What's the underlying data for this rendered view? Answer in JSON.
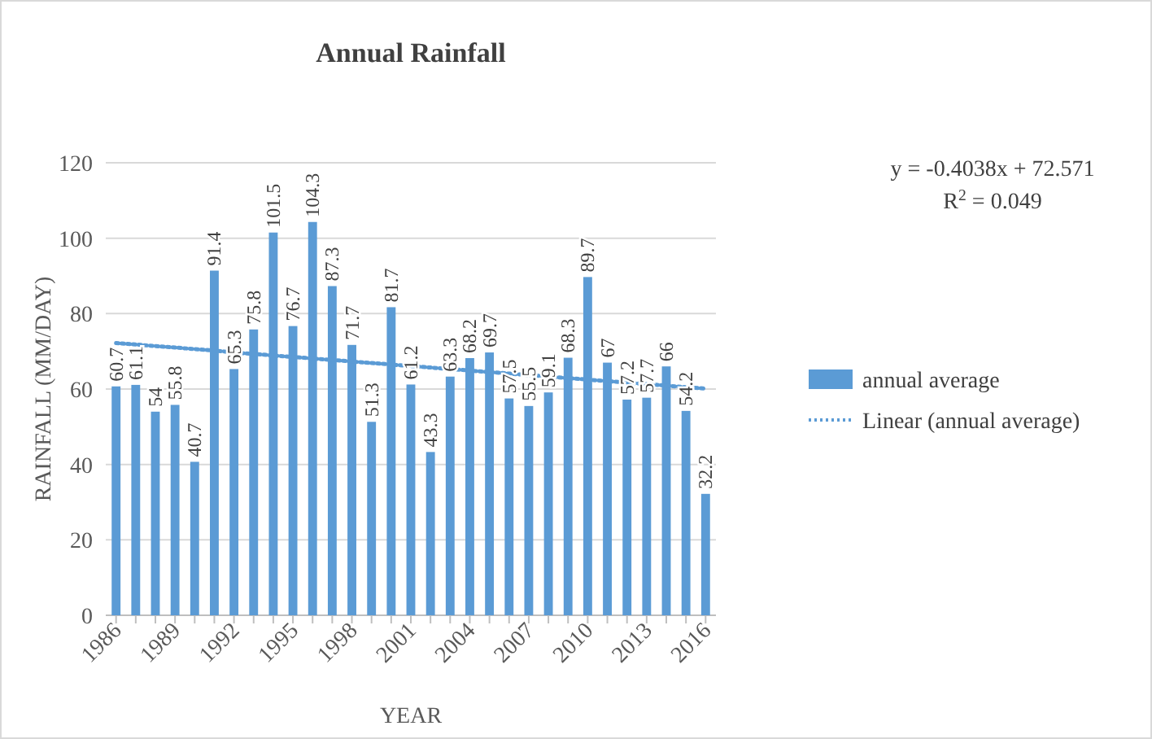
{
  "chart_data": {
    "type": "bar",
    "title": "Annual Rainfall",
    "xlabel": "YEAR",
    "ylabel": "RAINFALL (MM/DAY)",
    "categories": [
      "1986",
      null,
      null,
      "1989",
      null,
      null,
      "1992",
      null,
      null,
      "1995",
      null,
      null,
      "1998",
      null,
      null,
      "2001",
      null,
      null,
      "2004",
      null,
      null,
      "2007",
      null,
      null,
      "2010",
      null,
      null,
      "2013",
      null,
      null,
      "2016"
    ],
    "series": [
      {
        "name": "annual average",
        "color": "#5b9bd5",
        "values": [
          60.7,
          61.1,
          54,
          55.8,
          40.7,
          91.4,
          65.3,
          75.8,
          101.5,
          76.7,
          104.3,
          87.3,
          71.7,
          51.3,
          81.7,
          61.2,
          43.3,
          63.3,
          68.2,
          69.7,
          57.5,
          55.5,
          59.1,
          68.3,
          89.7,
          67,
          57.2,
          57.7,
          66,
          54.2,
          32.2
        ],
        "value_labels": [
          "60.7",
          "61.1",
          "54",
          "55.8",
          "40.7",
          "91.4",
          "65.3",
          "75.8",
          "101.5",
          "76.7",
          "104.3",
          "87.3",
          "71.7",
          "51.3",
          "81.7",
          "61.2",
          "43.3",
          "63.3",
          "68.2",
          "69.7",
          "57.5",
          "55.5",
          "59.1",
          "68.3",
          "89.7",
          "67",
          "57.2",
          "57.7",
          "66",
          "54.2",
          "32.2"
        ]
      },
      {
        "name": "Linear (annual average)",
        "type": "line",
        "color": "#5b9bd5",
        "line_style": "dotted",
        "values": [
          72.2,
          71.8,
          71.4,
          71.0,
          70.6,
          70.2,
          69.7,
          69.3,
          68.9,
          68.5,
          68.1,
          67.7,
          67.3,
          66.9,
          66.5,
          66.1,
          65.7,
          65.3,
          64.9,
          64.5,
          64.1,
          63.7,
          63.3,
          62.9,
          62.5,
          62.1,
          61.7,
          61.3,
          60.9,
          60.5,
          60.1
        ]
      }
    ],
    "ylim": [
      0,
      120
    ],
    "yticks": [
      0,
      20,
      40,
      60,
      80,
      100,
      120
    ],
    "grid": "y",
    "legend": "right",
    "annotations": [
      "y = -0.4038x + 72.571",
      "R$^{2}$ = 0.049"
    ]
  }
}
